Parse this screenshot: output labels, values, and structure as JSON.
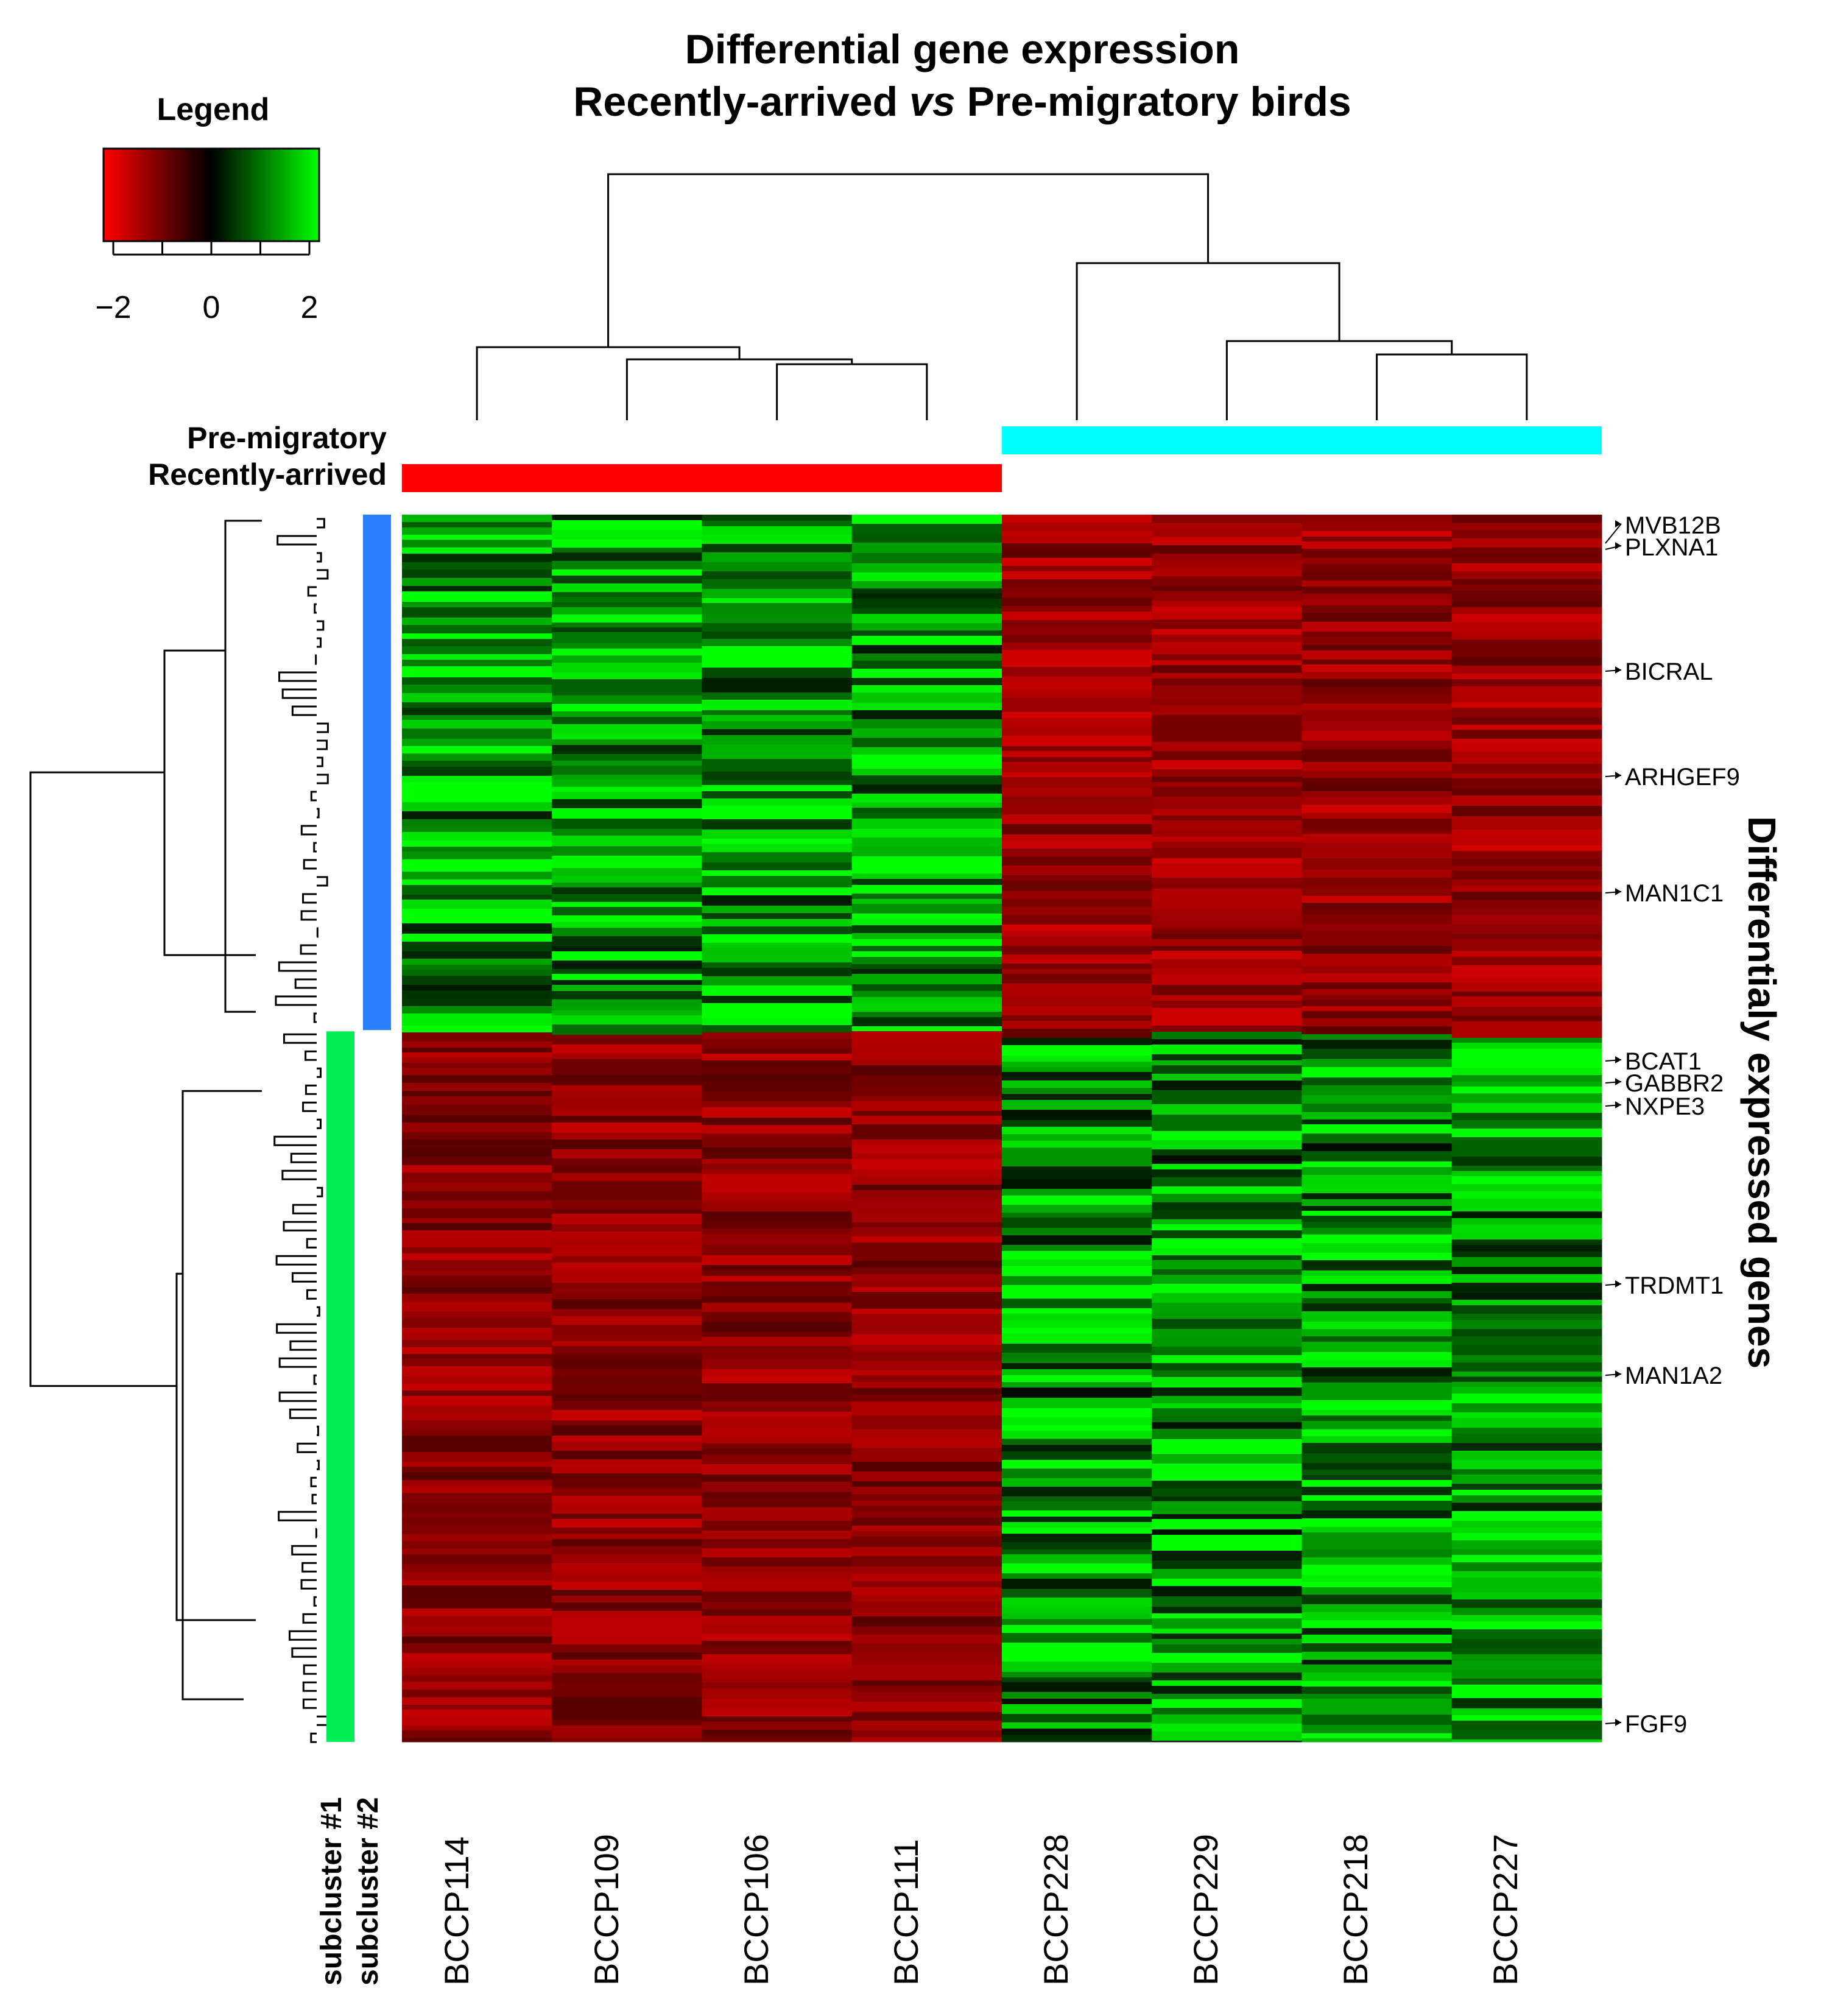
{
  "title": {
    "line1": "Differential gene expression",
    "line2_a": "Recently-arrived ",
    "line2_vs": "vs",
    "line2_b": " Pre-migratory birds"
  },
  "legend": {
    "title": "Legend",
    "ticks": [
      "−2",
      "0",
      "2"
    ],
    "tick_values": [
      -2,
      -1,
      0,
      1,
      2
    ],
    "colors": [
      "#ff0000",
      "#000000",
      "#00ff00"
    ]
  },
  "conditions": [
    {
      "label": "Pre-migratory",
      "color": "#00ffff"
    },
    {
      "label": "Recently-arrived",
      "color": "#ff0000"
    }
  ],
  "subclusters": [
    {
      "label": "subcluster #1",
      "color": "#00ee55"
    },
    {
      "label": "subcluster #2",
      "color": "#2a7fff"
    }
  ],
  "y_axis_title": "Differentialy expressed genes",
  "chart_data": {
    "type": "heatmap",
    "title": "Differential gene expression Recently-arrived vs Pre-migratory birds",
    "samples": [
      "BCCP114",
      "BCCP109",
      "BCCP106",
      "BCCP111",
      "BCCP228",
      "BCCP229",
      "BCCP218",
      "BCCP227"
    ],
    "sample_groups": [
      "Recently-arrived",
      "Recently-arrived",
      "Recently-arrived",
      "Recently-arrived",
      "Pre-migratory",
      "Pre-migratory",
      "Pre-migratory",
      "Pre-migratory"
    ],
    "color_scale": {
      "min": -2,
      "mid": 0,
      "max": 2,
      "low_color": "#ff0000",
      "mid_color": "#000000",
      "high_color": "#00ff00"
    },
    "gene_blocks": [
      {
        "subcluster": "subcluster #2",
        "share_of_genes": 0.42,
        "recently_arrived": 1.3,
        "pre_migratory": -1.2
      },
      {
        "subcluster": "subcluster #1",
        "share_of_genes": 0.58,
        "recently_arrived": -1.1,
        "pre_migratory": 1.2
      }
    ],
    "labeled_genes": [
      "MVB12B",
      "PLXNA1",
      "BICRAL",
      "ARHGEF9",
      "MAN1C1",
      "BCAT1",
      "GABBR2",
      "NXPE3",
      "TRDMT1",
      "MAN1A2",
      "FGF9"
    ],
    "legend_ticks": [
      -2,
      0,
      2
    ]
  }
}
